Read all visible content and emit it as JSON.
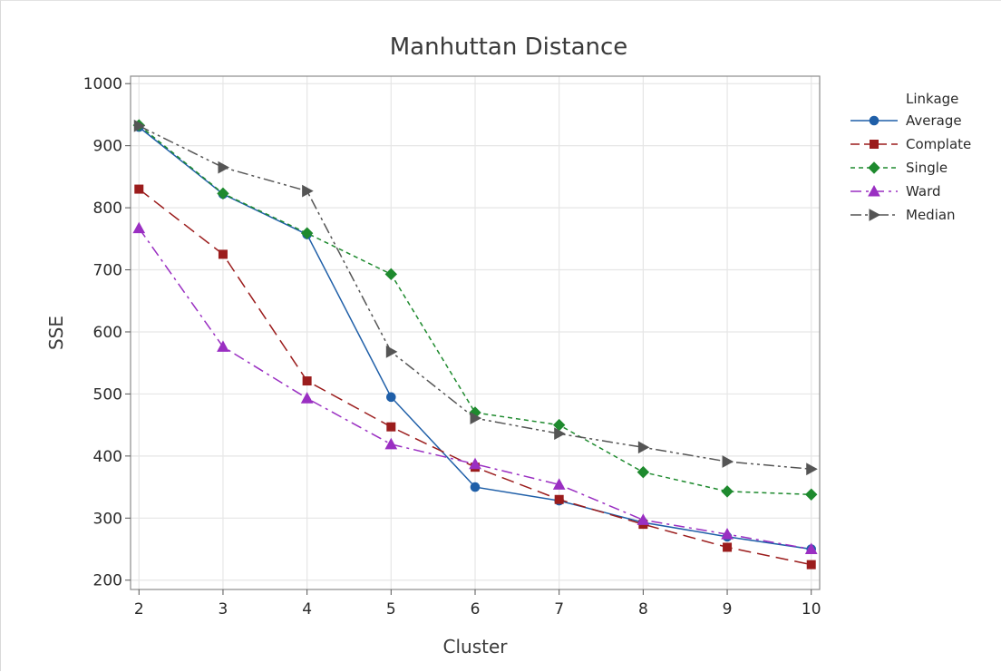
{
  "chart_data": {
    "type": "line",
    "title": "Manhuttan Distance",
    "xlabel": "Cluster",
    "ylabel": "SSE",
    "x": [
      2,
      3,
      4,
      5,
      6,
      7,
      8,
      9,
      10
    ],
    "xlim": [
      1.9,
      10.1
    ],
    "ylim": [
      185,
      1012
    ],
    "yticks": [
      200,
      300,
      400,
      500,
      600,
      700,
      800,
      900,
      1000
    ],
    "grid": true,
    "legend": {
      "title": "Linkage",
      "placement": "right"
    },
    "series": [
      {
        "name": "Average",
        "color": "#1f5fa8",
        "marker": "circle",
        "dash": "solid",
        "values": [
          930,
          822,
          757,
          495,
          350,
          328,
          293,
          270,
          250
        ]
      },
      {
        "name": "Complate",
        "color": "#9b1c1c",
        "marker": "square",
        "dash": "longdash",
        "values": [
          830,
          725,
          521,
          447,
          382,
          330,
          290,
          253,
          225
        ]
      },
      {
        "name": "Single",
        "color": "#1e8a2e",
        "marker": "diamond",
        "dash": "dot",
        "values": [
          933,
          823,
          759,
          693,
          470,
          450,
          374,
          343,
          338
        ]
      },
      {
        "name": "Ward",
        "color": "#9a2fc2",
        "marker": "triangle-up",
        "dash": "dashdot",
        "values": [
          767,
          576,
          493,
          419,
          387,
          354,
          297,
          274,
          250
        ]
      },
      {
        "name": "Median",
        "color": "#555555",
        "marker": "triangle-right",
        "dash": "dashdotdot",
        "values": [
          932,
          865,
          827,
          568,
          461,
          436,
          414,
          391,
          379
        ]
      }
    ]
  }
}
